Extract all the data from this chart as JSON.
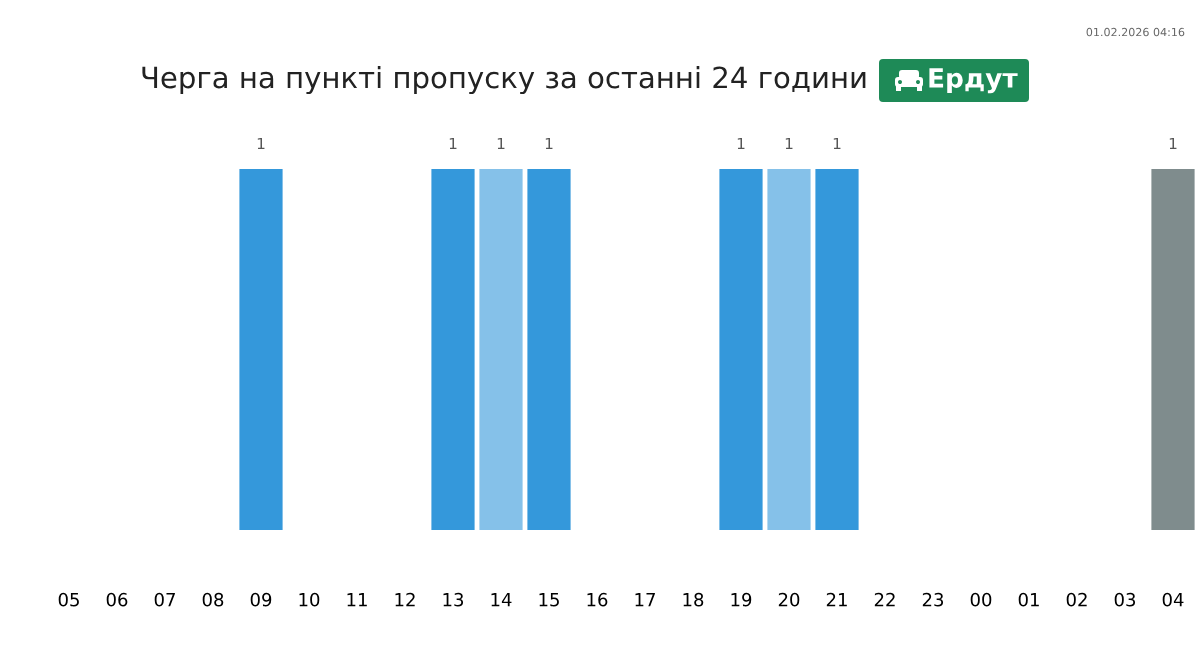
{
  "chart_data": {
    "type": "bar",
    "title": "Черга на пункті пропуску за останні 24 години",
    "annotations": [
      "01.02.2026 04:16",
      "Ердут"
    ],
    "categories": [
      "05",
      "06",
      "07",
      "08",
      "09",
      "10",
      "11",
      "12",
      "13",
      "14",
      "15",
      "16",
      "17",
      "18",
      "19",
      "20",
      "21",
      "22",
      "23",
      "00",
      "01",
      "02",
      "03",
      "04"
    ],
    "values": [
      0,
      0,
      0,
      0,
      1,
      0,
      0,
      0,
      1,
      1,
      1,
      0,
      0,
      0,
      1,
      1,
      1,
      0,
      0,
      0,
      0,
      0,
      0,
      1
    ],
    "colors": [
      "#3498db",
      "#3498db",
      "#3498db",
      "#3498db",
      "#3498db",
      "#3498db",
      "#3498db",
      "#3498db",
      "#3498db",
      "#85c1e9",
      "#3498db",
      "#3498db",
      "#3498db",
      "#3498db",
      "#3498db",
      "#85c1e9",
      "#3498db",
      "#3498db",
      "#3498db",
      "#3498db",
      "#3498db",
      "#3498db",
      "#3498db",
      "#7f8c8d"
    ],
    "value_labels": [
      null,
      null,
      null,
      null,
      "1",
      null,
      null,
      null,
      "1",
      "1",
      "1",
      null,
      null,
      null,
      "1",
      "1",
      "1",
      null,
      null,
      null,
      null,
      null,
      null,
      "1"
    ],
    "grid": false,
    "legend": false
  }
}
